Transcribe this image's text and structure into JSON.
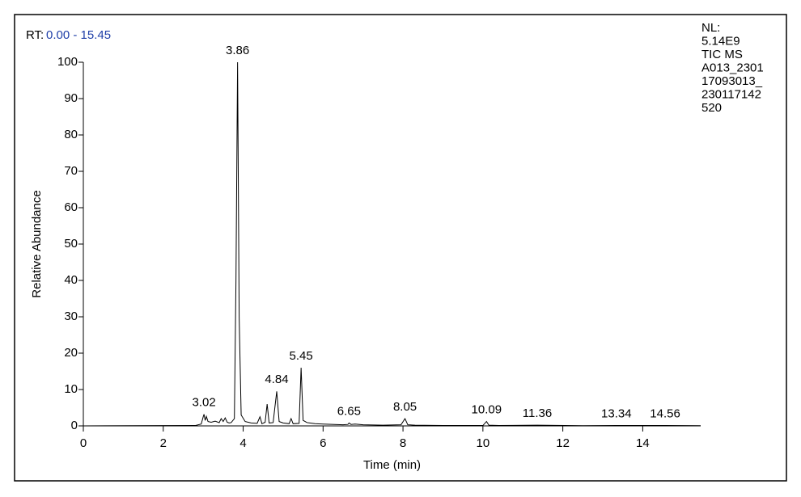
{
  "chart_data": {
    "type": "line",
    "rt_label": "RT:",
    "rt_range": "0.00 - 15.45",
    "info_lines": [
      "NL:",
      "5.14E9",
      "TIC  MS",
      "A013_2301",
      "17093013_",
      "230117142",
      "520"
    ],
    "xlabel": "Time (min)",
    "ylabel": "Relative Abundance",
    "xlim": [
      0,
      15.45
    ],
    "ylim": [
      0,
      100
    ],
    "xticks": [
      0,
      2,
      4,
      6,
      8,
      10,
      12,
      14
    ],
    "yticks": [
      0,
      10,
      20,
      30,
      40,
      50,
      60,
      70,
      80,
      90,
      100
    ],
    "color": "#000000",
    "x": [
      0,
      2.8,
      2.95,
      3.0,
      3.02,
      3.05,
      3.08,
      3.12,
      3.2,
      3.3,
      3.4,
      3.45,
      3.5,
      3.55,
      3.6,
      3.65,
      3.7,
      3.78,
      3.82,
      3.86,
      3.9,
      3.95,
      4.05,
      4.2,
      4.35,
      4.42,
      4.47,
      4.55,
      4.6,
      4.65,
      4.75,
      4.84,
      4.9,
      5.0,
      5.15,
      5.2,
      5.25,
      5.4,
      5.45,
      5.5,
      5.6,
      5.8,
      6.0,
      6.5,
      6.62,
      6.65,
      6.7,
      6.8,
      7.0,
      7.5,
      7.95,
      8.05,
      8.12,
      8.3,
      9.0,
      10.0,
      10.09,
      10.15,
      10.4,
      11.36,
      12.5,
      13.34,
      14.56,
      15.45
    ],
    "values": [
      0,
      0.1,
      0.5,
      2.5,
      3.2,
      1.5,
      2.6,
      1.2,
      1.0,
      1.3,
      0.9,
      2.0,
      1.2,
      2.2,
      1.0,
      0.8,
      0.9,
      2,
      40,
      100,
      30,
      3,
      1.2,
      0.8,
      0.7,
      2.5,
      0.6,
      1.0,
      6.0,
      0.8,
      0.9,
      9.5,
      1.2,
      0.8,
      0.6,
      2.0,
      0.6,
      0.7,
      16,
      1.5,
      0.9,
      0.6,
      0.5,
      0.3,
      0.4,
      0.8,
      0.4,
      0.5,
      0.3,
      0.2,
      0.3,
      2.0,
      0.3,
      0.2,
      0.1,
      0.1,
      1.2,
      0.2,
      0.1,
      0.2,
      0.05,
      0.1,
      0.1,
      0.05
    ],
    "annotations": [
      {
        "label": "3.02",
        "x": 3.02,
        "y": 3.2
      },
      {
        "label": "3.86",
        "x": 3.86,
        "y": 100
      },
      {
        "label": "4.84",
        "x": 4.84,
        "y": 9.5
      },
      {
        "label": "5.45",
        "x": 5.45,
        "y": 16
      },
      {
        "label": "6.65",
        "x": 6.65,
        "y": 0.8
      },
      {
        "label": "8.05",
        "x": 8.05,
        "y": 2.0
      },
      {
        "label": "10.09",
        "x": 10.09,
        "y": 1.2
      },
      {
        "label": "11.36",
        "x": 11.36,
        "y": 0.2
      },
      {
        "label": "13.34",
        "x": 13.34,
        "y": 0.1
      },
      {
        "label": "14.56",
        "x": 14.56,
        "y": 0.1
      }
    ]
  }
}
